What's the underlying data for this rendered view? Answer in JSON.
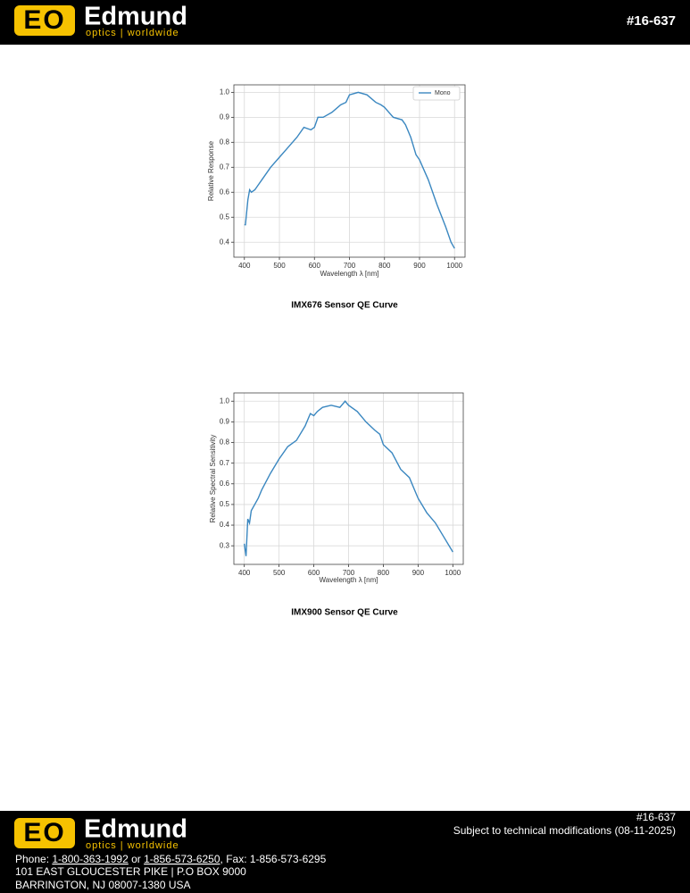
{
  "header": {
    "logo_mark": "EO",
    "brand": "Edmund",
    "tagline": "optics | worldwide",
    "part_number": "#16-637"
  },
  "chart_data": [
    {
      "type": "line",
      "title": "IMX676 Sensor QE Curve",
      "xlabel": "Wavelength λ [nm]",
      "ylabel": "Relative Response",
      "x": [
        400,
        403,
        410,
        415,
        420,
        430,
        440,
        450,
        475,
        500,
        525,
        550,
        570,
        590,
        600,
        610,
        625,
        650,
        675,
        690,
        700,
        725,
        750,
        775,
        790,
        800,
        825,
        850,
        860,
        875,
        890,
        900,
        925,
        950,
        975,
        990,
        1000
      ],
      "series": [
        {
          "name": "Mono",
          "color": "#3a87c0",
          "values": [
            0.47,
            0.47,
            0.57,
            0.61,
            0.6,
            0.61,
            0.63,
            0.65,
            0.7,
            0.74,
            0.78,
            0.82,
            0.86,
            0.85,
            0.86,
            0.9,
            0.9,
            0.92,
            0.95,
            0.96,
            0.99,
            1.0,
            0.99,
            0.96,
            0.95,
            0.94,
            0.9,
            0.89,
            0.87,
            0.82,
            0.75,
            0.73,
            0.65,
            0.55,
            0.46,
            0.4,
            0.375
          ]
        }
      ],
      "xlim": [
        370,
        1030
      ],
      "xticks": [
        400,
        500,
        600,
        700,
        800,
        900,
        1000
      ],
      "ylim": [
        0.34,
        1.03
      ],
      "yticks": [
        0.4,
        0.5,
        0.6,
        0.7,
        0.8,
        0.9,
        {
          "value": 1,
          "label": "1.0"
        }
      ],
      "grid": true,
      "legend": "upper-right"
    },
    {
      "type": "line",
      "title": "IMX900 Sensor QE Curve",
      "xlabel": "Wavelength λ [nm]",
      "ylabel": "Relative Spectral Sensitivity",
      "x": [
        400,
        405,
        410,
        415,
        420,
        430,
        440,
        450,
        475,
        500,
        525,
        550,
        575,
        590,
        600,
        610,
        625,
        650,
        675,
        690,
        700,
        725,
        750,
        775,
        790,
        800,
        825,
        850,
        875,
        890,
        900,
        925,
        950,
        975,
        1000
      ],
      "series": [
        {
          "color": "#3a87c0",
          "values": [
            0.31,
            0.25,
            0.43,
            0.41,
            0.47,
            0.5,
            0.53,
            0.57,
            0.65,
            0.72,
            0.78,
            0.81,
            0.88,
            0.94,
            0.93,
            0.95,
            0.97,
            0.98,
            0.97,
            1.0,
            0.98,
            0.95,
            0.9,
            0.86,
            0.84,
            0.79,
            0.75,
            0.67,
            0.63,
            0.57,
            0.53,
            0.46,
            0.41,
            0.34,
            0.27
          ]
        }
      ],
      "xlim": [
        370,
        1030
      ],
      "xticks": [
        400,
        500,
        600,
        700,
        800,
        900,
        1000
      ],
      "ylim": [
        0.21,
        1.04
      ],
      "yticks": [
        0.3,
        0.4,
        0.5,
        0.6,
        0.7,
        0.8,
        0.9,
        {
          "value": 1,
          "label": "1.0"
        }
      ],
      "grid": true
    }
  ],
  "footer": {
    "logo_mark": "EO",
    "brand": "Edmund",
    "tagline": "optics | worldwide",
    "part_number": "#16-637",
    "notice": "Subject to technical modifications (08-11-2025)",
    "phone": [
      "Phone: ",
      "1-800-363-1992",
      " or ",
      "1-856-573-6250",
      ", Fax: 1-856-573-6295"
    ],
    "address": [
      "101 EAST GLOUCESTER PIKE | P.O BOX 9000",
      "BARRINGTON, NJ 08007-1380 USA"
    ]
  }
}
